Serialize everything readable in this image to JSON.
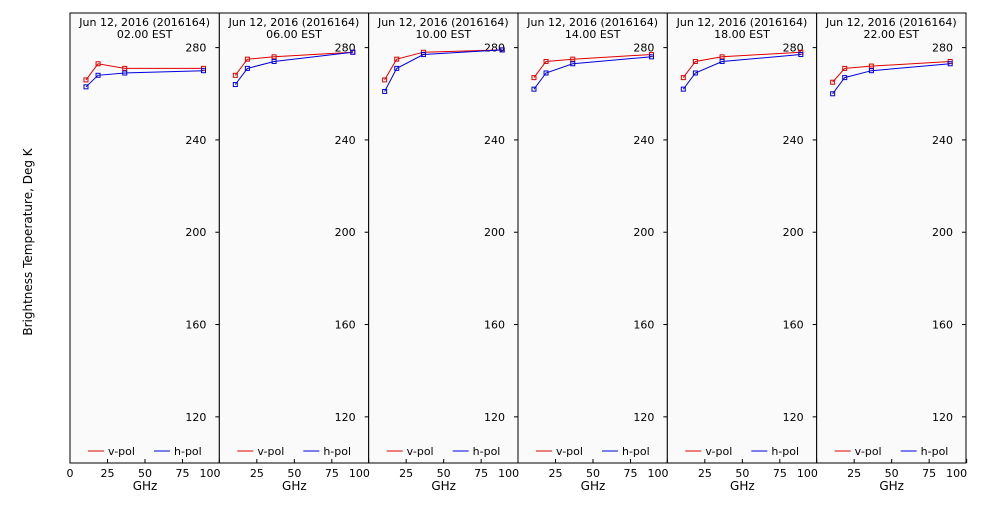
{
  "ylabel": "Brightness Temperature, Deg K",
  "xlabel": "GHz",
  "legend": {
    "entries": [
      {
        "name": "v-pol",
        "color": "#e00000"
      },
      {
        "name": "h-pol",
        "color": "#0000e0"
      }
    ]
  },
  "chart_data": [
    {
      "type": "line",
      "title": "Jun 12, 2016 (2016164)",
      "subtitle": "02.00 EST",
      "xlim": [
        0,
        100
      ],
      "ylim": [
        100,
        295
      ],
      "xticks": [
        0,
        25,
        50,
        75,
        100
      ],
      "yticks": [
        120,
        160,
        200,
        240,
        280
      ],
      "series": [
        {
          "name": "v-pol",
          "color": "#e00000",
          "x": [
            10.65,
            18.7,
            36.5,
            89.0
          ],
          "y": [
            266,
            273,
            271,
            271
          ]
        },
        {
          "name": "h-pol",
          "color": "#0000e0",
          "x": [
            10.65,
            18.7,
            36.5,
            89.0
          ],
          "y": [
            263,
            268,
            269,
            270
          ]
        }
      ]
    },
    {
      "type": "line",
      "title": "Jun 12, 2016 (2016164)",
      "subtitle": "06.00 EST",
      "xlim": [
        0,
        100
      ],
      "ylim": [
        100,
        295
      ],
      "xticks": [
        0,
        25,
        50,
        75,
        100
      ],
      "yticks": [
        120,
        160,
        200,
        240,
        280
      ],
      "series": [
        {
          "name": "v-pol",
          "color": "#e00000",
          "x": [
            10.65,
            18.7,
            36.5,
            89.0
          ],
          "y": [
            268,
            275,
            276,
            278
          ]
        },
        {
          "name": "h-pol",
          "color": "#0000e0",
          "x": [
            10.65,
            18.7,
            36.5,
            89.0
          ],
          "y": [
            264,
            271,
            274,
            278
          ]
        }
      ]
    },
    {
      "type": "line",
      "title": "Jun 12, 2016 (2016164)",
      "subtitle": "10.00 EST",
      "xlim": [
        0,
        100
      ],
      "ylim": [
        100,
        295
      ],
      "xticks": [
        0,
        25,
        50,
        75,
        100
      ],
      "yticks": [
        120,
        160,
        200,
        240,
        280
      ],
      "series": [
        {
          "name": "v-pol",
          "color": "#e00000",
          "x": [
            10.65,
            18.7,
            36.5,
            89.0
          ],
          "y": [
            266,
            275,
            278,
            279
          ]
        },
        {
          "name": "h-pol",
          "color": "#0000e0",
          "x": [
            10.65,
            18.7,
            36.5,
            89.0
          ],
          "y": [
            261,
            271,
            277,
            279
          ]
        }
      ]
    },
    {
      "type": "line",
      "title": "Jun 12, 2016 (2016164)",
      "subtitle": "14.00 EST",
      "xlim": [
        0,
        100
      ],
      "ylim": [
        100,
        295
      ],
      "xticks": [
        0,
        25,
        50,
        75,
        100
      ],
      "yticks": [
        120,
        160,
        200,
        240,
        280
      ],
      "series": [
        {
          "name": "v-pol",
          "color": "#e00000",
          "x": [
            10.65,
            18.7,
            36.5,
            89.0
          ],
          "y": [
            267,
            274,
            275,
            277
          ]
        },
        {
          "name": "h-pol",
          "color": "#0000e0",
          "x": [
            10.65,
            18.7,
            36.5,
            89.0
          ],
          "y": [
            262,
            269,
            273,
            276
          ]
        }
      ]
    },
    {
      "type": "line",
      "title": "Jun 12, 2016 (2016164)",
      "subtitle": "18.00 EST",
      "xlim": [
        0,
        100
      ],
      "ylim": [
        100,
        295
      ],
      "xticks": [
        0,
        25,
        50,
        75,
        100
      ],
      "yticks": [
        120,
        160,
        200,
        240,
        280
      ],
      "series": [
        {
          "name": "v-pol",
          "color": "#e00000",
          "x": [
            10.65,
            18.7,
            36.5,
            89.0
          ],
          "y": [
            267,
            274,
            276,
            278
          ]
        },
        {
          "name": "h-pol",
          "color": "#0000e0",
          "x": [
            10.65,
            18.7,
            36.5,
            89.0
          ],
          "y": [
            262,
            269,
            274,
            277
          ]
        }
      ]
    },
    {
      "type": "line",
      "title": "Jun 12, 2016 (2016164)",
      "subtitle": "22.00 EST",
      "xlim": [
        0,
        100
      ],
      "ylim": [
        100,
        295
      ],
      "xticks": [
        0,
        25,
        50,
        75,
        100
      ],
      "yticks": [
        120,
        160,
        200,
        240,
        280
      ],
      "series": [
        {
          "name": "v-pol",
          "color": "#e00000",
          "x": [
            10.65,
            18.7,
            36.5,
            89.0
          ],
          "y": [
            265,
            271,
            272,
            274
          ]
        },
        {
          "name": "h-pol",
          "color": "#0000e0",
          "x": [
            10.65,
            18.7,
            36.5,
            89.0
          ],
          "y": [
            260,
            267,
            270,
            273
          ]
        }
      ]
    }
  ]
}
